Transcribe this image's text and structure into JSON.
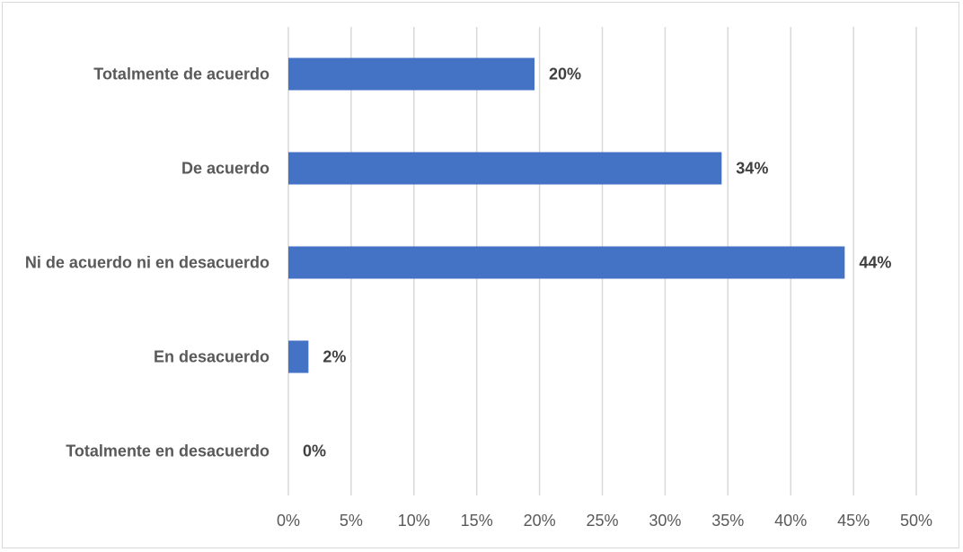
{
  "chart_data": {
    "type": "bar",
    "orientation": "horizontal",
    "title": "",
    "xlabel": "",
    "ylabel": "",
    "categories": [
      "Totalmente de acuerdo",
      "De acuerdo",
      "Ni de acuerdo ni en desacuerdo",
      "En desacuerdo",
      "Totalmente en desacuerdo"
    ],
    "values": [
      19.6,
      34.5,
      44.3,
      1.6,
      0
    ],
    "data_labels": [
      "20%",
      "34%",
      "44%",
      "2%",
      "0%"
    ],
    "xlim": [
      0,
      50
    ],
    "xticks": [
      0,
      5,
      10,
      15,
      20,
      25,
      30,
      35,
      40,
      45,
      50
    ],
    "xtick_labels": [
      "0%",
      "5%",
      "10%",
      "15%",
      "20%",
      "25%",
      "30%",
      "35%",
      "40%",
      "45%",
      "50%"
    ],
    "grid": "vertical",
    "legend": "none",
    "bar_color": "#4472c4"
  }
}
